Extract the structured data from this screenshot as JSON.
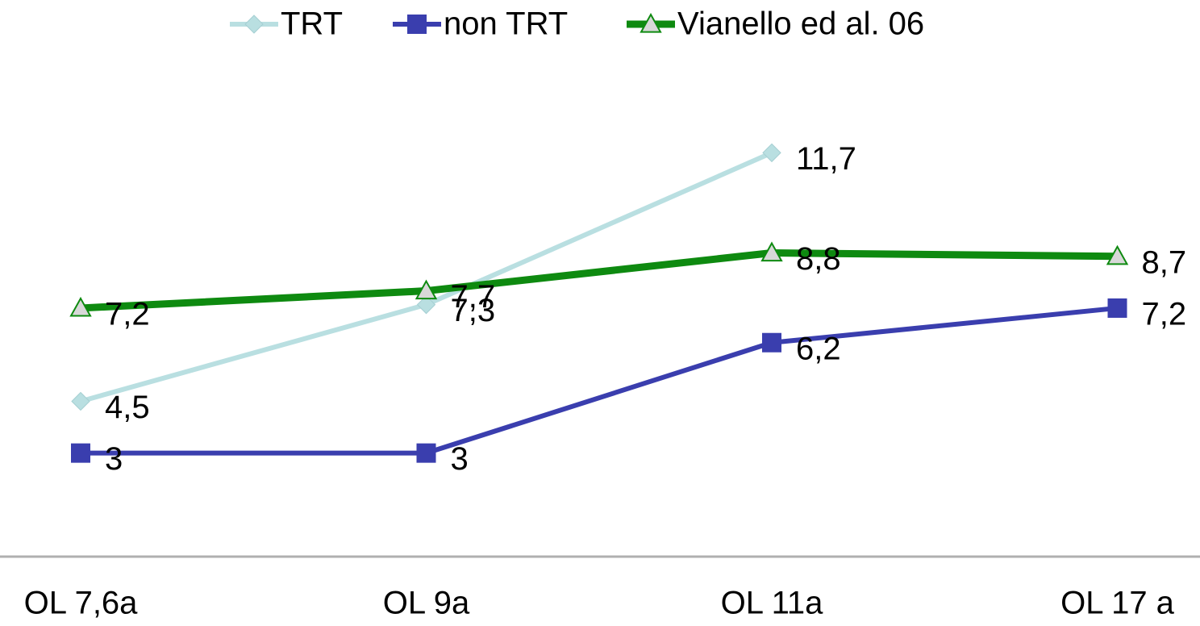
{
  "chart_data": {
    "type": "line",
    "categories": [
      "OL 7,6a",
      "OL 9a",
      "OL 11a",
      "OL 17 a"
    ],
    "ylim": [
      0,
      14
    ],
    "legend": "top",
    "series": [
      {
        "name": "TRT",
        "color": "#b9dfe1",
        "marker": "diamond",
        "values": [
          4.5,
          7.3,
          11.7,
          null
        ],
        "value_labels": [
          "4,5",
          "7,3",
          "11,7",
          null
        ]
      },
      {
        "name": "non TRT",
        "color": "#3a3eae",
        "marker": "square",
        "values": [
          3,
          3,
          6.2,
          7.2
        ],
        "value_labels": [
          "3",
          "3",
          "6,2",
          "7,2"
        ]
      },
      {
        "name": "Vianello ed al. 06",
        "color": "#0e8a10",
        "marker": "triangle",
        "values": [
          7.2,
          7.7,
          8.8,
          8.7
        ],
        "value_labels": [
          "7,2",
          "7,7",
          "8,8",
          "8,7"
        ]
      }
    ]
  }
}
